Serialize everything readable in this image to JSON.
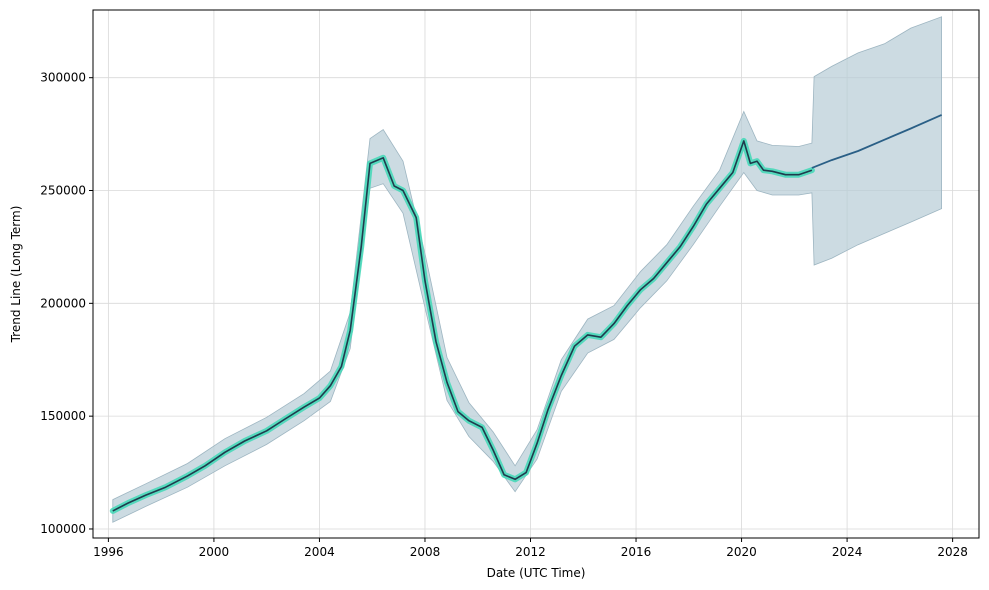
{
  "chart_data": {
    "type": "line",
    "title": "",
    "xlabel": "Date (UTC Time)",
    "ylabel": "Trend Line (Long Term)",
    "xlim": [
      "1995-06-01",
      "2029-01-01"
    ],
    "ylim": [
      96000,
      330000
    ],
    "grid": true,
    "x_ticks": [
      "1996",
      "2000",
      "2004",
      "2008",
      "2012",
      "2016",
      "2020",
      "2024",
      "2028"
    ],
    "y_ticks": [
      "100000",
      "150000",
      "200000",
      "250000",
      "300000"
    ],
    "colors": {
      "history_line": "#1f3b4d",
      "history_glow": "#3fd8b6",
      "forecast_line": "#2a5f86",
      "band_fill": "#b7ccd6",
      "band_edge": "#9db5c1",
      "grid": "#d9d9d9"
    },
    "series": [
      {
        "role": "history",
        "x": [
          "1996-03",
          "1996-10",
          "1997-06",
          "1998-03",
          "1999-01",
          "1999-09",
          "2000-06",
          "2001-03",
          "2002-01",
          "2002-09",
          "2003-06",
          "2004-01",
          "2004-06",
          "2004-11",
          "2005-03",
          "2005-08",
          "2005-12",
          "2006-06",
          "2006-11",
          "2007-03",
          "2007-09",
          "2008-01",
          "2008-06",
          "2008-11",
          "2009-04",
          "2009-09",
          "2010-03",
          "2010-08",
          "2011-01",
          "2011-06",
          "2011-11",
          "2012-04",
          "2012-09",
          "2013-03",
          "2013-09",
          "2014-03",
          "2014-09",
          "2015-03",
          "2015-09",
          "2016-03",
          "2016-09",
          "2017-03",
          "2017-09",
          "2018-03",
          "2018-09",
          "2019-03",
          "2019-09",
          "2020-02",
          "2020-05",
          "2020-08",
          "2020-11",
          "2021-03",
          "2021-09",
          "2022-03",
          "2022-09"
        ],
        "y": [
          108000,
          111500,
          115000,
          118500,
          123500,
          128000,
          134000,
          139000,
          143500,
          148500,
          154000,
          158000,
          163500,
          172000,
          188000,
          225000,
          262000,
          264500,
          252000,
          250000,
          238000,
          210000,
          183000,
          165000,
          152000,
          148000,
          145000,
          135000,
          124000,
          122000,
          125000,
          138000,
          153000,
          168000,
          181000,
          186000,
          185000,
          191000,
          199000,
          206000,
          211000,
          218000,
          225000,
          234000,
          244000,
          251000,
          258000,
          272000,
          262000,
          263000,
          259000,
          258500,
          257000,
          257000,
          259000
        ]
      },
      {
        "role": "forecast",
        "x": [
          "2022-09",
          "2023-06",
          "2024-06",
          "2025-06",
          "2026-06",
          "2027-08"
        ],
        "y": [
          260000,
          263500,
          267500,
          272500,
          277500,
          283500
        ]
      },
      {
        "role": "band_upper",
        "x": [
          "1996-03",
          "1997-06",
          "1999-01",
          "2000-06",
          "2002-01",
          "2003-06",
          "2004-06",
          "2005-03",
          "2005-12",
          "2006-06",
          "2007-03",
          "2008-01",
          "2008-11",
          "2009-09",
          "2010-08",
          "2011-06",
          "2012-04",
          "2013-03",
          "2014-03",
          "2015-03",
          "2016-03",
          "2017-03",
          "2018-03",
          "2019-03",
          "2020-02",
          "2020-08",
          "2021-03",
          "2022-03",
          "2022-09",
          "2022-10",
          "2023-06",
          "2024-06",
          "2025-06",
          "2026-06",
          "2027-08"
        ],
        "y": [
          113000,
          120000,
          129000,
          140000,
          149500,
          160000,
          170000,
          196000,
          273000,
          277000,
          263000,
          222000,
          176000,
          156000,
          143000,
          128000,
          144000,
          175000,
          193000,
          199000,
          214000,
          226000,
          243000,
          259000,
          285000,
          272000,
          270000,
          269500,
          271000,
          300500,
          305000,
          311000,
          315000,
          322000,
          327000
        ]
      },
      {
        "role": "band_lower",
        "x": [
          "1996-03",
          "1997-06",
          "1999-01",
          "2000-06",
          "2002-01",
          "2003-06",
          "2004-06",
          "2005-03",
          "2005-12",
          "2006-06",
          "2007-03",
          "2008-01",
          "2008-11",
          "2009-09",
          "2010-08",
          "2011-06",
          "2012-04",
          "2013-03",
          "2014-03",
          "2015-03",
          "2016-03",
          "2017-03",
          "2018-03",
          "2019-03",
          "2020-02",
          "2020-08",
          "2021-03",
          "2022-03",
          "2022-09",
          "2022-10",
          "2023-06",
          "2024-06",
          "2025-06",
          "2026-06",
          "2027-08"
        ],
        "y": [
          103000,
          110000,
          118500,
          128000,
          137500,
          148000,
          156500,
          180000,
          251000,
          253000,
          240000,
          198000,
          157000,
          141000,
          130000,
          116500,
          131000,
          161000,
          178000,
          184000,
          198000,
          210000,
          226000,
          243000,
          258000,
          250000,
          248000,
          248000,
          249000,
          217000,
          220000,
          226000,
          231000,
          236000,
          242000
        ]
      }
    ]
  }
}
